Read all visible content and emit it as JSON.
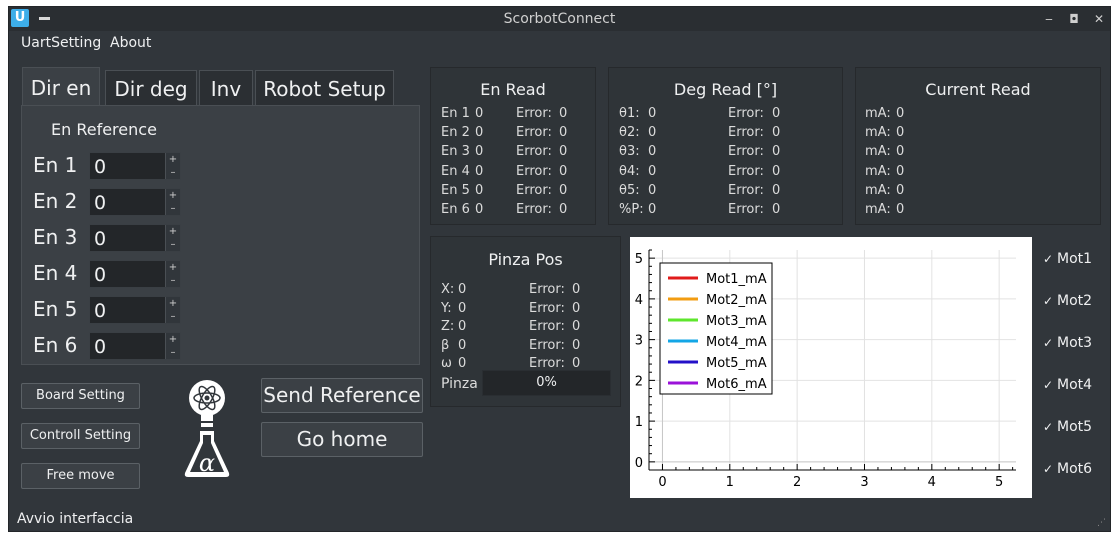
{
  "window": {
    "title": "ScorbotConnect",
    "app_icon_letter": "U"
  },
  "menu": [
    "UartSetting",
    "About"
  ],
  "tabs": [
    "Dir en",
    "Dir deg",
    "Inv",
    "Robot Setup"
  ],
  "en_reference": {
    "title": "En Reference",
    "rows": [
      {
        "label": "En 1",
        "value": "0"
      },
      {
        "label": "En 2",
        "value": "0"
      },
      {
        "label": "En 3",
        "value": "0"
      },
      {
        "label": "En 4",
        "value": "0"
      },
      {
        "label": "En 5",
        "value": "0"
      },
      {
        "label": "En 6",
        "value": "0"
      }
    ]
  },
  "buttons": {
    "board_setting": "Board Setting",
    "controll_setting": "Controll Setting",
    "free_move": "Free move",
    "send_reference": "Send Reference",
    "go_home": "Go home"
  },
  "en_read": {
    "title": "En Read",
    "rows": [
      {
        "label": "En 1",
        "value": "0",
        "err_label": "Error:",
        "err": "0"
      },
      {
        "label": "En 2",
        "value": "0",
        "err_label": "Error:",
        "err": "0"
      },
      {
        "label": "En 3",
        "value": "0",
        "err_label": "Error:",
        "err": "0"
      },
      {
        "label": "En 4",
        "value": "0",
        "err_label": "Error:",
        "err": "0"
      },
      {
        "label": "En 5",
        "value": "0",
        "err_label": "Error:",
        "err": "0"
      },
      {
        "label": "En 6",
        "value": "0",
        "err_label": "Error:",
        "err": "0"
      }
    ]
  },
  "deg_read": {
    "title": "Deg Read [°]",
    "rows": [
      {
        "label": "θ1:",
        "value": "0",
        "err_label": "Error:",
        "err": "0"
      },
      {
        "label": "θ2:",
        "value": "0",
        "err_label": "Error:",
        "err": "0"
      },
      {
        "label": "θ3:",
        "value": "0",
        "err_label": "Error:",
        "err": "0"
      },
      {
        "label": "θ4:",
        "value": "0",
        "err_label": "Error:",
        "err": "0"
      },
      {
        "label": "θ5:",
        "value": "0",
        "err_label": "Error:",
        "err": "0"
      },
      {
        "label": "%P:",
        "value": "0",
        "err_label": "Error:",
        "err": "0"
      }
    ]
  },
  "current_read": {
    "title": "Current Read",
    "rows": [
      {
        "label": "mA:",
        "value": "0"
      },
      {
        "label": "mA:",
        "value": "0"
      },
      {
        "label": "mA:",
        "value": "0"
      },
      {
        "label": "mA:",
        "value": "0"
      },
      {
        "label": "mA:",
        "value": "0"
      },
      {
        "label": "mA:",
        "value": "0"
      }
    ]
  },
  "pinza_pos": {
    "title": "Pinza Pos",
    "rows": [
      {
        "label": "X:",
        "value": "0",
        "err_label": "Error:",
        "err": "0"
      },
      {
        "label": "Y:",
        "value": "0",
        "err_label": "Error:",
        "err": "0"
      },
      {
        "label": "Z:",
        "value": "0",
        "err_label": "Error:",
        "err": "0"
      },
      {
        "label": "β",
        "value": "0",
        "err_label": "Error:",
        "err": "0"
      },
      {
        "label": "ω",
        "value": "0",
        "err_label": "Error:",
        "err": "0"
      }
    ],
    "pinza_label": "Pinza",
    "progress_text": "0%",
    "progress_value": 0
  },
  "motors": [
    {
      "label": "Mot1",
      "checked": true,
      "check_mark": "✓"
    },
    {
      "label": "Mot2",
      "checked": true,
      "check_mark": "✓"
    },
    {
      "label": "Mot3",
      "checked": true,
      "check_mark": "✓"
    },
    {
      "label": "Mot4",
      "checked": true,
      "check_mark": "✓"
    },
    {
      "label": "Mot5",
      "checked": true,
      "check_mark": "✓"
    },
    {
      "label": "Mot6",
      "checked": true,
      "check_mark": "✓"
    }
  ],
  "status": "Avvio interfaccia",
  "chart_data": {
    "type": "line",
    "title": "",
    "xlabel": "",
    "ylabel": "",
    "xlim": [
      -0.2,
      5.25
    ],
    "ylim": [
      -0.2,
      5.2
    ],
    "x_ticks": [
      "0",
      "1",
      "2",
      "3",
      "4",
      "5"
    ],
    "y_ticks": [
      "0",
      "1",
      "2",
      "3",
      "4",
      "5"
    ],
    "grid": true,
    "legend_position": "top-left",
    "series": [
      {
        "name": "Mot1_mA",
        "color": "#e01b1b",
        "values": []
      },
      {
        "name": "Mot2_mA",
        "color": "#f29c11",
        "values": []
      },
      {
        "name": "Mot3_mA",
        "color": "#5ee62c",
        "values": []
      },
      {
        "name": "Mot4_mA",
        "color": "#13a6e6",
        "values": []
      },
      {
        "name": "Mot5_mA",
        "color": "#2410c8",
        "values": []
      },
      {
        "name": "Mot6_mA",
        "color": "#9b12d9",
        "values": []
      }
    ]
  }
}
